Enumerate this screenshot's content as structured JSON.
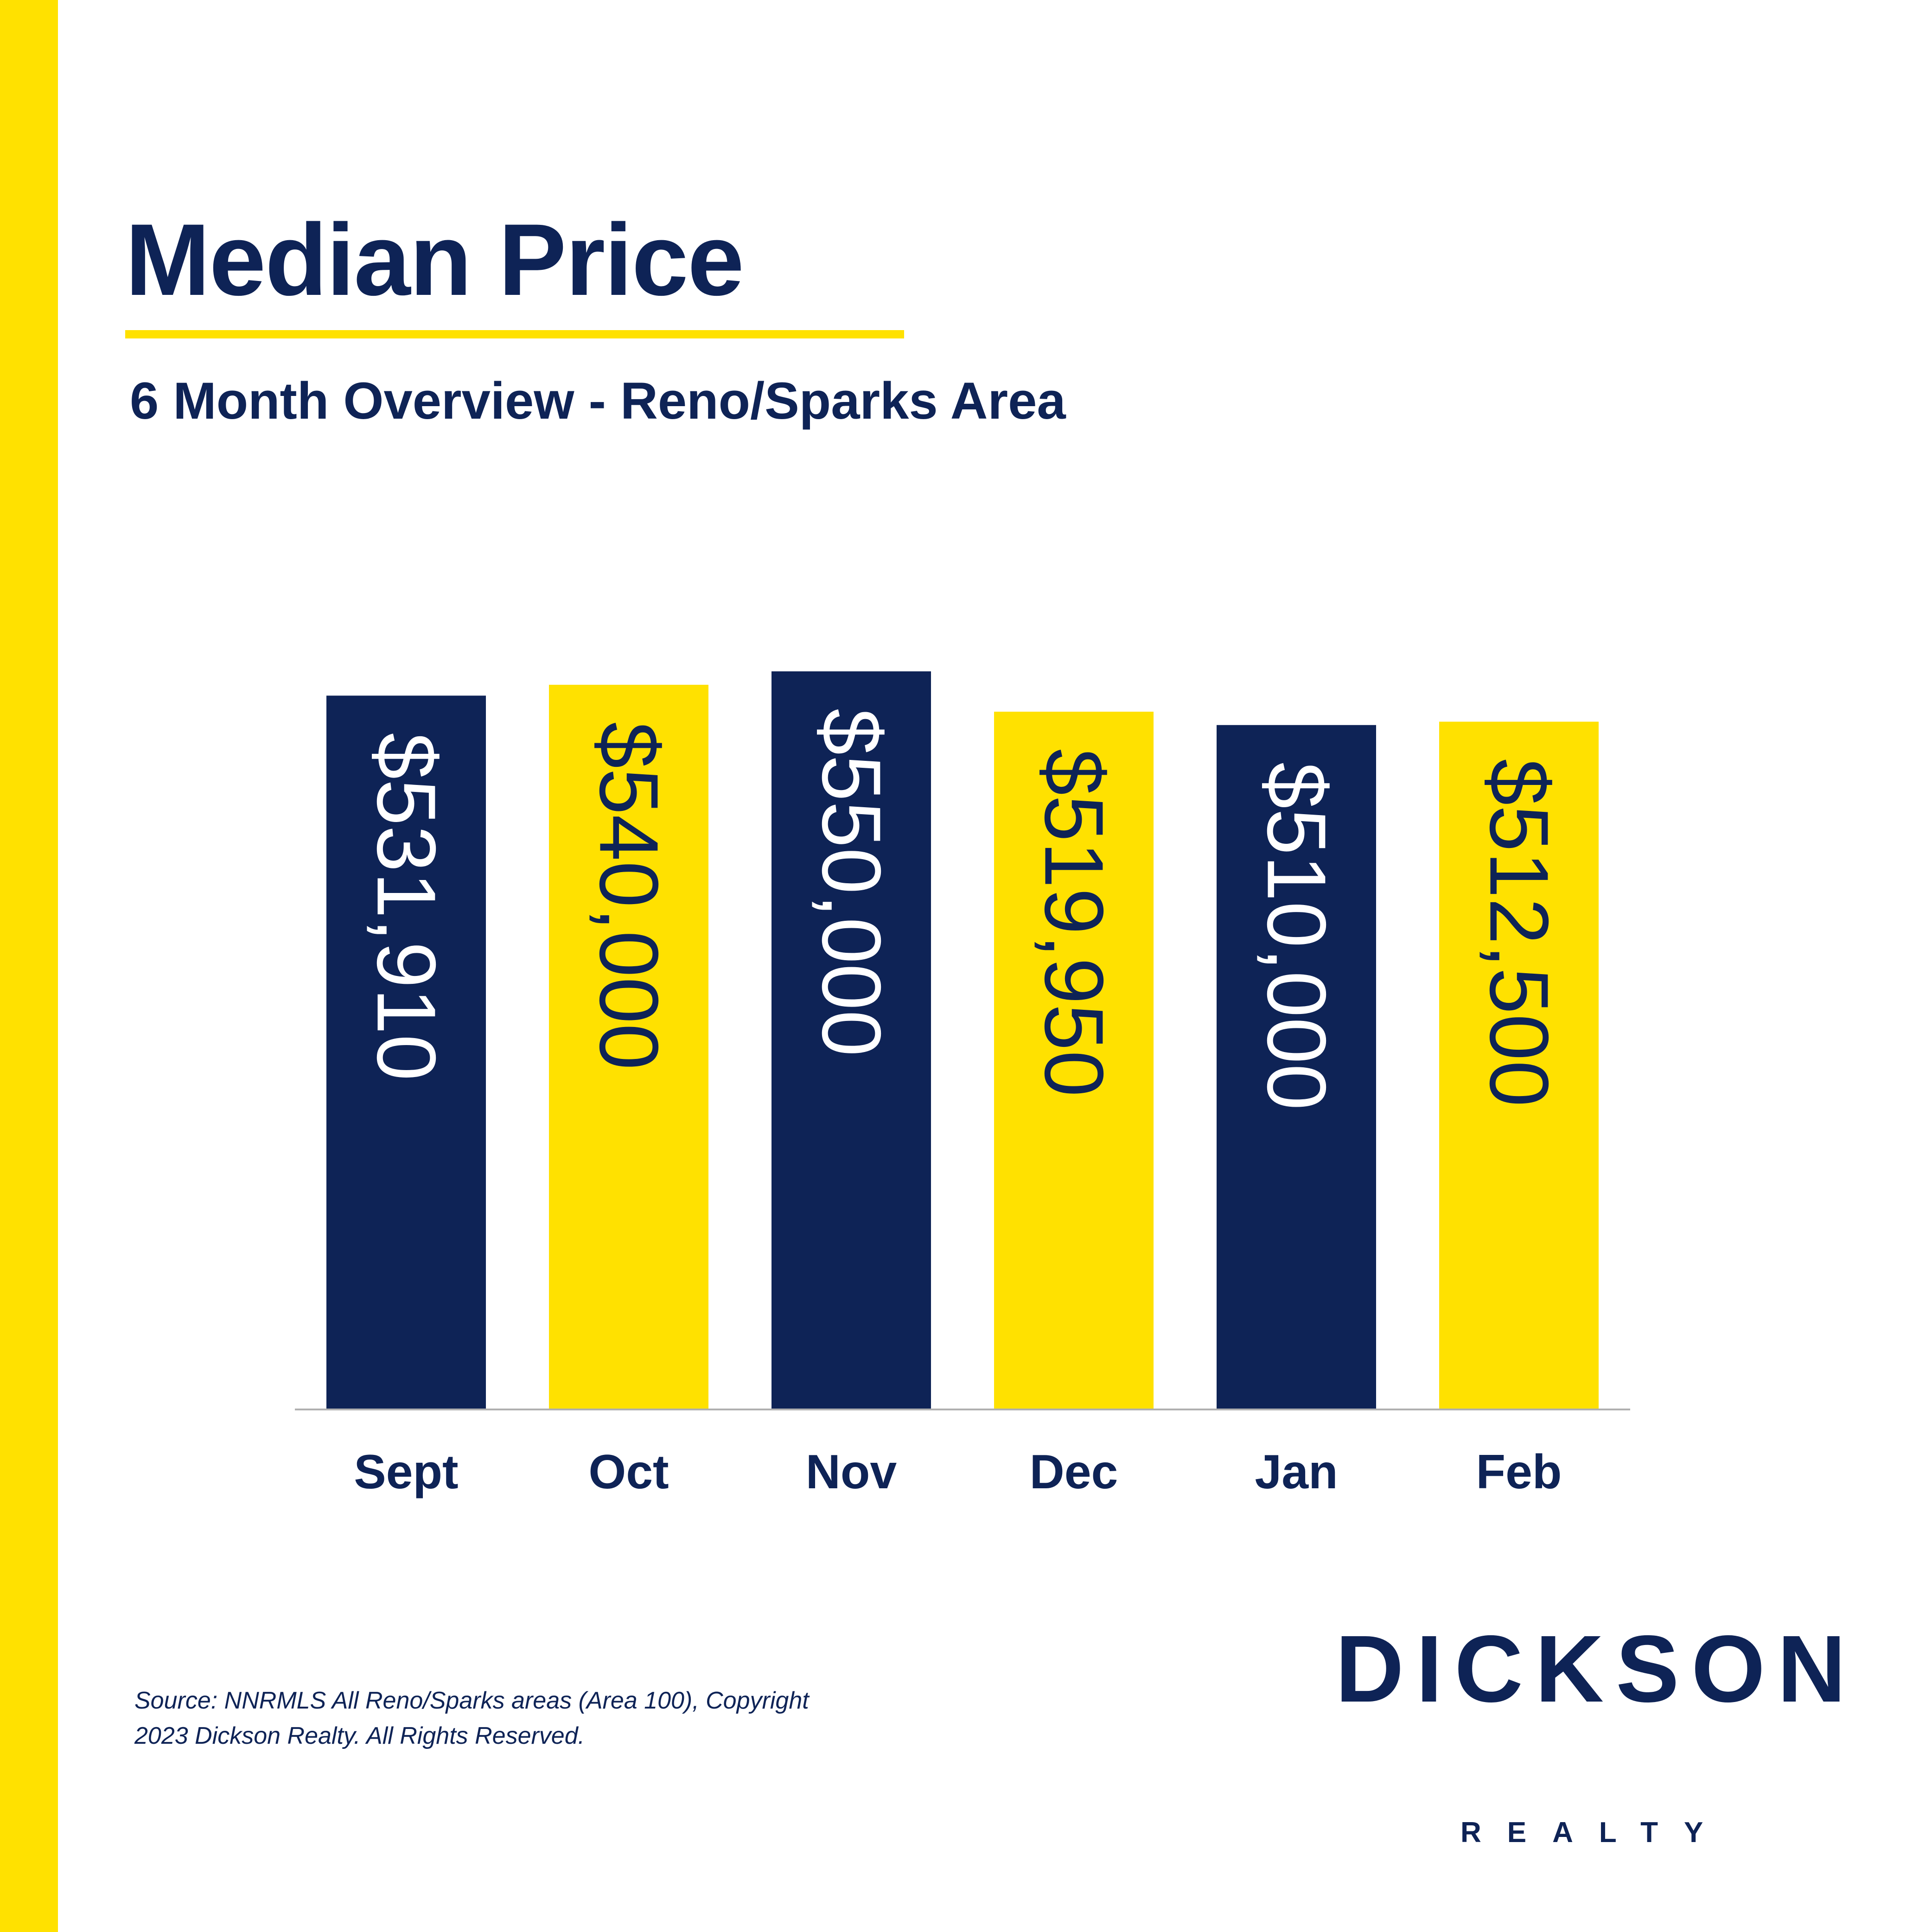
{
  "header": {
    "title": "Median Price",
    "subtitle": "6 Month Overview - Reno/Sparks Area"
  },
  "colors": {
    "navy": "#0e2356",
    "yellow": "#ffe100",
    "axis": "#b0b0b0"
  },
  "chart_data": {
    "type": "bar",
    "categories": [
      "Sept",
      "Oct",
      "Nov",
      "Dec",
      "Jan",
      "Feb"
    ],
    "values": [
      531910,
      540000,
      550000,
      519950,
      510000,
      512500
    ],
    "data_labels": [
      "$531,910",
      "$540,000",
      "$550,000",
      "$519,950",
      "$510,000",
      "$512,500"
    ],
    "bar_colors": [
      "navy",
      "yellow",
      "navy",
      "yellow",
      "navy",
      "yellow"
    ],
    "label_orientation": "rotated-90-clockwise",
    "title": "",
    "xlabel": "",
    "ylabel": "",
    "grid": false,
    "legend": "none",
    "y_axis_visible": false
  },
  "footer": {
    "source_line1": "Source: NNRMLS All Reno/Sparks areas (Area 100), Copyright",
    "source_line2": "2023 Dickson Realty. All Rights Reserved."
  },
  "logo": {
    "name": "DICKSON",
    "tagline": "REALTY"
  }
}
